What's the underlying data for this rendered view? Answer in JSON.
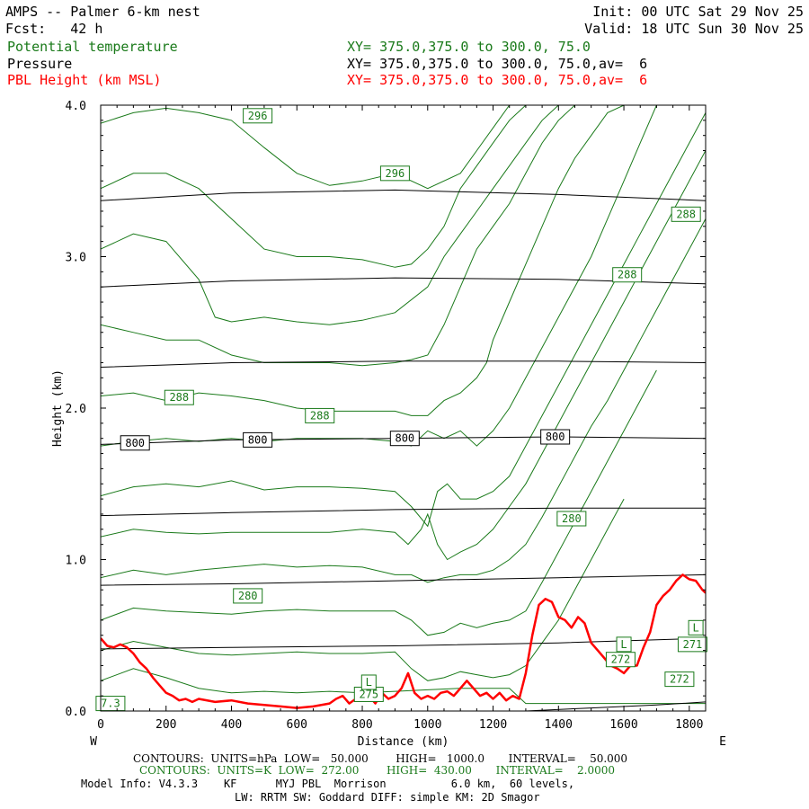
{
  "header": {
    "title": "AMPS -- Palmer 6-km nest",
    "init": "Init: 00 UTC Sat 29 Nov 25",
    "fcst": "Fcst:   42 h",
    "valid": "Valid: 18 UTC Sun 30 Nov 25",
    "field1": "Potential temperature",
    "field2": "Pressure",
    "field3": "PBL Height (km MSL)",
    "xs1": "XY= 375.0,375.0 to 300.0, 75.0",
    "xs2": "XY= 375.0,375.0 to 300.0, 75.0,av=  6",
    "xs3": "XY= 375.0,375.0 to 300.0, 75.0,av=  6"
  },
  "footer": {
    "line1": "CONTOURS:  UNITS=hPa  LOW=   50.000        HIGH=   1000.0       INTERVAL=    50.000",
    "line2": "CONTOURS:  UNITS=K  LOW=  272.00        HIGH=  430.00       INTERVAL=    2.0000",
    "line3": "Model Info: V4.3.3    KF      MYJ PBL  Morrison          6.0 km,  60 levels,",
    "line4": "LW: RRTM SW: Goddard DIFF: simple KM: 2D Smagor"
  },
  "colors": {
    "theta": "#1a7a1a",
    "pressure": "#000000",
    "pbl": "#ff0000"
  },
  "chart_data": {
    "type": "line",
    "xlabel": "Distance (km)",
    "ylabel": "Height (km)",
    "xlim": [
      0,
      1850
    ],
    "ylim": [
      0,
      4.0
    ],
    "x_ticks": [
      0,
      200,
      400,
      600,
      800,
      1000,
      1200,
      1400,
      1600,
      1800
    ],
    "x_tick_labels": [
      "0",
      "200",
      "400",
      "600",
      "800",
      "1000",
      "1200",
      "1400",
      "1600",
      "1800"
    ],
    "y_ticks": [
      0,
      1,
      2,
      3,
      4
    ],
    "y_tick_labels": [
      "0.0",
      "1.0",
      "2.0",
      "3.0",
      "4.0"
    ],
    "west_label": "W",
    "east_label": "E",
    "pressure_contours": [
      {
        "x": [
          0,
          400,
          900,
          1400,
          1850
        ],
        "y": [
          3.37,
          3.42,
          3.44,
          3.41,
          3.37
        ]
      },
      {
        "x": [
          0,
          400,
          900,
          1400,
          1850
        ],
        "y": [
          2.8,
          2.84,
          2.86,
          2.85,
          2.82
        ]
      },
      {
        "x": [
          0,
          400,
          900,
          1400,
          1850
        ],
        "y": [
          2.27,
          2.3,
          2.31,
          2.31,
          2.3
        ]
      },
      {
        "x": [
          0,
          400,
          900,
          1400,
          1850
        ],
        "y": [
          1.76,
          1.79,
          1.8,
          1.81,
          1.8
        ]
      },
      {
        "x": [
          0,
          400,
          900,
          1400,
          1850
        ],
        "y": [
          1.29,
          1.31,
          1.33,
          1.34,
          1.34
        ]
      },
      {
        "x": [
          0,
          400,
          900,
          1400,
          1850
        ],
        "y": [
          0.83,
          0.84,
          0.86,
          0.88,
          0.9
        ]
      },
      {
        "x": [
          0,
          400,
          900,
          1400,
          1850
        ],
        "y": [
          0.41,
          0.42,
          0.43,
          0.45,
          0.48
        ]
      },
      {
        "x": [
          1300,
          1500,
          1700,
          1850
        ],
        "y": [
          0.0,
          0.02,
          0.04,
          0.06
        ]
      }
    ],
    "pressure_labels": [
      {
        "text": "800",
        "x": 105,
        "y": 1.77
      },
      {
        "text": "800",
        "x": 480,
        "y": 1.79
      },
      {
        "text": "800",
        "x": 930,
        "y": 1.8
      },
      {
        "text": "800",
        "x": 1390,
        "y": 1.81
      }
    ],
    "theta_contours": [
      {
        "x": [
          0,
          100,
          200,
          300,
          400,
          500,
          600,
          700,
          800,
          900,
          1000,
          1100,
          1150,
          1250,
          1300,
          1400,
          1500,
          1600,
          1700,
          1800,
          1850
        ],
        "y": [
          0.2,
          0.28,
          0.22,
          0.15,
          0.12,
          0.13,
          0.12,
          0.13,
          0.12,
          0.13,
          0.14,
          0.15,
          0.15,
          0.15,
          0.05,
          0.05,
          0.05,
          0.05,
          0.05,
          0.05,
          0.05
        ]
      },
      {
        "x": [
          0,
          100,
          200,
          300,
          400,
          500,
          600,
          700,
          800,
          900,
          950,
          1000,
          1050,
          1100,
          1150,
          1200,
          1250,
          1300,
          1350,
          1400,
          1450,
          1500,
          1550,
          1600
        ],
        "y": [
          0.4,
          0.46,
          0.42,
          0.38,
          0.37,
          0.38,
          0.39,
          0.38,
          0.38,
          0.39,
          0.28,
          0.2,
          0.22,
          0.26,
          0.24,
          0.22,
          0.24,
          0.3,
          0.45,
          0.6,
          0.8,
          1.0,
          1.2,
          1.4
        ]
      },
      {
        "x": [
          0,
          100,
          200,
          300,
          400,
          500,
          600,
          700,
          800,
          900,
          950,
          1000,
          1050,
          1100,
          1150,
          1200,
          1250,
          1300,
          1350,
          1400,
          1450,
          1500,
          1550,
          1600,
          1650,
          1700
        ],
        "y": [
          0.6,
          0.68,
          0.66,
          0.65,
          0.64,
          0.66,
          0.67,
          0.66,
          0.66,
          0.66,
          0.6,
          0.5,
          0.52,
          0.58,
          0.55,
          0.58,
          0.6,
          0.66,
          0.85,
          1.05,
          1.25,
          1.45,
          1.65,
          1.85,
          2.05,
          2.25
        ]
      },
      {
        "x": [
          0,
          100,
          200,
          300,
          400,
          500,
          600,
          700,
          800,
          900,
          950,
          1000,
          1050,
          1100,
          1150,
          1200,
          1250,
          1300,
          1350,
          1400,
          1450,
          1500,
          1550,
          1600,
          1650,
          1700,
          1750,
          1800,
          1850
        ],
        "y": [
          0.88,
          0.93,
          0.9,
          0.93,
          0.95,
          0.97,
          0.95,
          0.96,
          0.95,
          0.9,
          0.9,
          0.85,
          0.88,
          0.9,
          0.9,
          0.93,
          1.0,
          1.1,
          1.28,
          1.48,
          1.68,
          1.88,
          2.05,
          2.25,
          2.45,
          2.65,
          2.85,
          3.05,
          3.25
        ]
      },
      {
        "x": [
          0,
          100,
          200,
          300,
          400,
          500,
          600,
          700,
          800,
          900,
          940,
          980,
          1000,
          1030,
          1060,
          1100,
          1150,
          1200,
          1250,
          1300,
          1350,
          1400,
          1450,
          1500,
          1550,
          1600,
          1650,
          1700,
          1750,
          1800,
          1850
        ],
        "y": [
          1.15,
          1.2,
          1.18,
          1.17,
          1.18,
          1.18,
          1.18,
          1.18,
          1.2,
          1.18,
          1.1,
          1.2,
          1.3,
          1.1,
          1.0,
          1.05,
          1.1,
          1.2,
          1.35,
          1.5,
          1.7,
          1.9,
          2.1,
          2.3,
          2.5,
          2.7,
          2.9,
          3.1,
          3.3,
          3.5,
          3.7
        ]
      },
      {
        "x": [
          0,
          100,
          200,
          300,
          400,
          500,
          600,
          700,
          800,
          900,
          950,
          1000,
          1030,
          1060,
          1100,
          1150,
          1200,
          1250,
          1300,
          1350,
          1400,
          1450,
          1500,
          1550,
          1600,
          1650,
          1700,
          1750,
          1800,
          1850
        ],
        "y": [
          1.42,
          1.48,
          1.5,
          1.48,
          1.52,
          1.46,
          1.48,
          1.48,
          1.47,
          1.45,
          1.35,
          1.22,
          1.45,
          1.5,
          1.4,
          1.4,
          1.45,
          1.55,
          1.75,
          1.95,
          2.15,
          2.35,
          2.55,
          2.75,
          2.95,
          3.15,
          3.35,
          3.55,
          3.75,
          3.95
        ]
      },
      {
        "x": [
          0,
          100,
          200,
          300,
          400,
          500,
          600,
          700,
          800,
          900,
          950,
          1000,
          1050,
          1100,
          1150,
          1200,
          1250,
          1300,
          1350,
          1400,
          1450,
          1500,
          1550,
          1600,
          1650,
          1700
        ],
        "y": [
          1.75,
          1.78,
          1.8,
          1.78,
          1.8,
          1.78,
          1.8,
          1.8,
          1.8,
          1.78,
          1.75,
          1.85,
          1.8,
          1.85,
          1.75,
          1.85,
          2.0,
          2.2,
          2.4,
          2.6,
          2.8,
          3.0,
          3.25,
          3.5,
          3.75,
          4.0
        ]
      },
      {
        "x": [
          0,
          100,
          200,
          300,
          400,
          500,
          600,
          700,
          800,
          900,
          950,
          1000,
          1050,
          1100,
          1150,
          1180,
          1200,
          1250,
          1300,
          1350,
          1400,
          1450,
          1500,
          1550,
          1600
        ],
        "y": [
          2.08,
          2.1,
          2.05,
          2.1,
          2.08,
          2.05,
          2.0,
          1.98,
          1.98,
          1.98,
          1.95,
          1.95,
          2.05,
          2.1,
          2.2,
          2.3,
          2.45,
          2.7,
          2.95,
          3.2,
          3.45,
          3.65,
          3.8,
          3.95,
          4.0
        ]
      },
      {
        "x": [
          0,
          100,
          200,
          300,
          400,
          500,
          600,
          700,
          800,
          900,
          950,
          1000,
          1050,
          1100,
          1150,
          1200,
          1250,
          1300,
          1350,
          1400,
          1450
        ],
        "y": [
          2.55,
          2.5,
          2.45,
          2.45,
          2.35,
          2.3,
          2.3,
          2.3,
          2.28,
          2.3,
          2.32,
          2.35,
          2.55,
          2.8,
          3.05,
          3.2,
          3.35,
          3.55,
          3.75,
          3.9,
          4.0
        ]
      },
      {
        "x": [
          0,
          100,
          200,
          300,
          350,
          400,
          500,
          600,
          700,
          800,
          900,
          1000,
          1050,
          1100,
          1150,
          1200,
          1250,
          1300,
          1350,
          1400
        ],
        "y": [
          3.05,
          3.15,
          3.1,
          2.85,
          2.6,
          2.57,
          2.6,
          2.57,
          2.55,
          2.58,
          2.63,
          2.8,
          3.0,
          3.15,
          3.3,
          3.45,
          3.6,
          3.75,
          3.9,
          4.0
        ]
      },
      {
        "x": [
          0,
          100,
          200,
          300,
          400,
          500,
          600,
          700,
          800,
          900,
          950,
          1000,
          1050,
          1100,
          1150,
          1200,
          1250,
          1300
        ],
        "y": [
          3.45,
          3.55,
          3.55,
          3.45,
          3.25,
          3.05,
          3.0,
          3.0,
          2.98,
          2.93,
          2.95,
          3.05,
          3.2,
          3.45,
          3.6,
          3.75,
          3.9,
          4.0
        ]
      },
      {
        "x": [
          0,
          100,
          200,
          300,
          400,
          500,
          600,
          700,
          800,
          900,
          1000,
          1100,
          1150,
          1200,
          1250
        ],
        "y": [
          3.88,
          3.95,
          3.98,
          3.95,
          3.9,
          3.72,
          3.55,
          3.47,
          3.5,
          3.55,
          3.45,
          3.55,
          3.7,
          3.85,
          4.0
        ]
      }
    ],
    "theta_labels": [
      {
        "text": "296",
        "x": 480,
        "y": 3.93
      },
      {
        "text": "296",
        "x": 900,
        "y": 3.55
      },
      {
        "text": "288",
        "x": 1790,
        "y": 3.28
      },
      {
        "text": "288",
        "x": 1610,
        "y": 2.88
      },
      {
        "text": "288",
        "x": 240,
        "y": 2.07
      },
      {
        "text": "288",
        "x": 670,
        "y": 1.95
      },
      {
        "text": "280",
        "x": 1440,
        "y": 1.27
      },
      {
        "text": "280",
        "x": 450,
        "y": 0.76
      },
      {
        "text": "272",
        "x": 1770,
        "y": 0.21
      },
      {
        "text": "272",
        "x": 1590,
        "y": 0.34
      },
      {
        "text": "271",
        "x": 1810,
        "y": 0.44
      },
      {
        "text": "275",
        "x": 820,
        "y": 0.11
      },
      {
        "text": "L",
        "x": 1820,
        "y": 0.55
      },
      {
        "text": "L",
        "x": 820,
        "y": 0.19
      },
      {
        "text": "L",
        "x": 1600,
        "y": 0.44
      },
      {
        "text": "7.3",
        "x": 30,
        "y": 0.05
      }
    ],
    "series": [
      {
        "name": "PBL Height (km MSL)",
        "x": [
          0,
          20,
          40,
          60,
          80,
          100,
          120,
          140,
          160,
          180,
          200,
          220,
          240,
          260,
          280,
          300,
          350,
          400,
          450,
          500,
          550,
          600,
          650,
          700,
          720,
          740,
          760,
          780,
          800,
          820,
          840,
          860,
          880,
          900,
          920,
          940,
          960,
          980,
          1000,
          1020,
          1040,
          1060,
          1080,
          1100,
          1120,
          1140,
          1160,
          1180,
          1200,
          1220,
          1240,
          1260,
          1280,
          1300,
          1320,
          1340,
          1360,
          1380,
          1400,
          1420,
          1440,
          1460,
          1480,
          1500,
          1520,
          1540,
          1560,
          1580,
          1600,
          1620,
          1640,
          1660,
          1680,
          1700,
          1720,
          1740,
          1760,
          1780,
          1800,
          1820,
          1840,
          1850
        ],
        "y": [
          0.48,
          0.43,
          0.42,
          0.44,
          0.42,
          0.38,
          0.32,
          0.28,
          0.22,
          0.17,
          0.12,
          0.1,
          0.07,
          0.08,
          0.06,
          0.08,
          0.06,
          0.07,
          0.05,
          0.04,
          0.03,
          0.02,
          0.03,
          0.05,
          0.08,
          0.1,
          0.05,
          0.08,
          0.12,
          0.1,
          0.05,
          0.12,
          0.08,
          0.1,
          0.15,
          0.25,
          0.12,
          0.08,
          0.1,
          0.08,
          0.12,
          0.13,
          0.1,
          0.15,
          0.2,
          0.15,
          0.1,
          0.12,
          0.08,
          0.12,
          0.07,
          0.1,
          0.08,
          0.25,
          0.5,
          0.7,
          0.74,
          0.72,
          0.62,
          0.6,
          0.55,
          0.62,
          0.58,
          0.45,
          0.4,
          0.35,
          0.3,
          0.28,
          0.25,
          0.3,
          0.3,
          0.42,
          0.52,
          0.7,
          0.76,
          0.8,
          0.86,
          0.9,
          0.87,
          0.86,
          0.8,
          0.78
        ]
      }
    ]
  }
}
